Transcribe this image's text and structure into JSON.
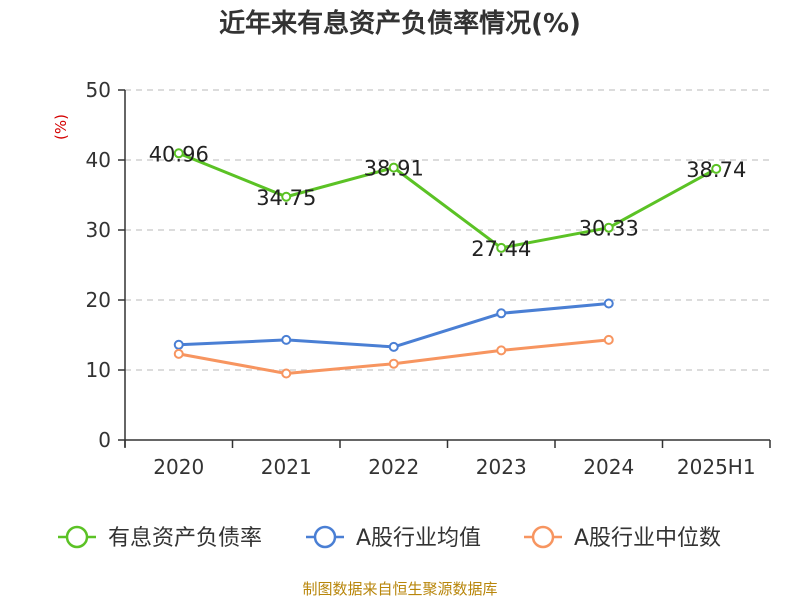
{
  "chart_data": {
    "type": "line",
    "title": "近年来有息资产负债率情况(%)",
    "unit_label": "(%)",
    "categories": [
      "2020",
      "2021",
      "2022",
      "2023",
      "2024",
      "2025H1"
    ],
    "ylim": [
      0,
      50
    ],
    "yticks": [
      0,
      10,
      20,
      30,
      40,
      50
    ],
    "grid": true,
    "legend_position": "bottom",
    "series": [
      {
        "name": "有息资产负债率",
        "color": "#5bc225",
        "values": [
          40.96,
          34.75,
          38.91,
          27.44,
          30.33,
          38.74
        ],
        "labels": [
          "40.96",
          "34.75",
          "38.91",
          "27.44",
          "30.33",
          "38.74"
        ]
      },
      {
        "name": "A股行业均值",
        "color": "#4a7fd4",
        "values": [
          13.6,
          14.3,
          13.3,
          18.1,
          19.5,
          null
        ]
      },
      {
        "name": "A股行业中位数",
        "color": "#f79560",
        "values": [
          12.3,
          9.5,
          10.9,
          12.8,
          14.3,
          null
        ]
      }
    ]
  },
  "footer": {
    "source": "制图数据来自恒生聚源数据库"
  }
}
